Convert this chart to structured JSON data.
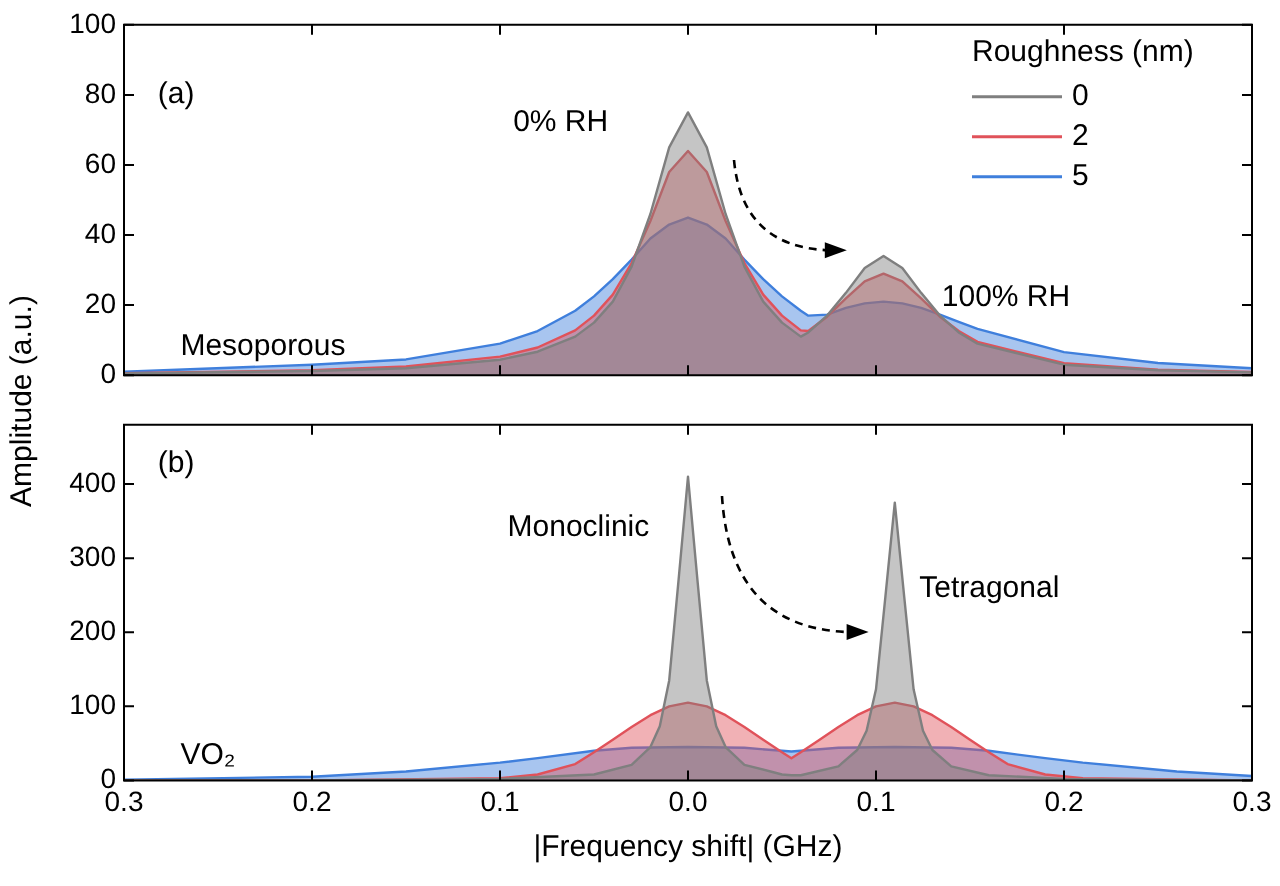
{
  "chart_data": [
    {
      "type": "area",
      "ylabel": "Amplitude (a.u.)",
      "legend": "top right",
      "legend_title": "Roughness (nm)",
      "tick_labels": "y",
      "xlim": [
        -0.3,
        0.3
      ],
      "xticks": [
        {
          "value": -0.3,
          "label": null
        },
        {
          "value": -0.2,
          "label": null
        },
        {
          "value": -0.1,
          "label": null
        },
        {
          "value": 0,
          "label": null
        },
        {
          "value": 0.1,
          "label": null
        },
        {
          "value": 0.2,
          "label": null
        },
        {
          "value": 0.3,
          "label": null
        }
      ],
      "ylim": [
        0,
        100
      ],
      "yticks": [
        0,
        20,
        40,
        60,
        80,
        100
      ],
      "grid": false,
      "annotations": [
        "(a)",
        "0% RH",
        "100% RH",
        "Mesoporous"
      ],
      "x": [
        -0.3,
        -0.2,
        -0.15,
        -0.1,
        -0.08,
        -0.06,
        -0.05,
        -0.04,
        -0.03,
        -0.02,
        -0.01,
        0,
        0.01,
        0.02,
        0.03,
        0.04,
        0.05,
        0.06,
        0.064,
        0.074,
        0.084,
        0.094,
        0.104,
        0.114,
        0.124,
        0.134,
        0.144,
        0.154,
        0.2,
        0.25,
        0.3
      ],
      "series": [
        {
          "name": "0",
          "color": "#7f7f7f",
          "values": [
            0.5,
            1.2,
            2,
            4.4,
            6.7,
            11,
            15,
            21,
            31,
            46,
            65,
            75,
            65,
            46,
            31,
            21,
            15,
            11,
            12.2,
            17,
            23.5,
            30.6,
            34,
            30.6,
            23.5,
            17,
            12.2,
            9,
            3,
            1.4,
            0.8
          ]
        },
        {
          "name": "2",
          "color": "#e0525a",
          "values": [
            0.6,
            1.4,
            2.5,
            5.3,
            7.9,
            12.8,
            17,
            23,
            32,
            44,
            58,
            64,
            58,
            44,
            32,
            23,
            17,
            12.8,
            12.6,
            16.7,
            21.9,
            26.8,
            29,
            26.8,
            21.9,
            16.7,
            12.6,
            9.5,
            3.4,
            1.6,
            0.9
          ]
        },
        {
          "name": "5",
          "color": "#3f7fdc",
          "values": [
            1,
            3,
            4.5,
            9,
            12.6,
            18.4,
            22.5,
            27.4,
            33,
            39,
            43,
            45,
            43,
            39,
            33,
            27.4,
            22.5,
            18.4,
            17,
            17.3,
            19.2,
            20.5,
            21,
            20.5,
            19.2,
            17.3,
            15.2,
            13.2,
            6.6,
            3.5,
            2
          ]
        }
      ]
    },
    {
      "type": "area",
      "xlabel": "|Frequency shift| (GHz)",
      "xlim": [
        -0.3,
        0.3
      ],
      "xticks": [
        {
          "value": -0.3,
          "label": "0.3"
        },
        {
          "value": -0.2,
          "label": "0.2"
        },
        {
          "value": -0.1,
          "label": "0.1"
        },
        {
          "value": 0,
          "label": "0.0"
        },
        0.1,
        0.2,
        0.3
      ],
      "ylim": [
        0,
        480
      ],
      "yticks": [
        0,
        100,
        200,
        300,
        400
      ],
      "grid": false,
      "annotations": [
        "(b)",
        "Monoclinic",
        "Tetragonal",
        "VO₂"
      ],
      "series": [
        {
          "color": "#3f7fdc",
          "x": [
            -0.3,
            -0.2,
            -0.15,
            -0.1,
            -0.08,
            -0.05,
            -0.03,
            0,
            0.03,
            0.05,
            0.055,
            0.06,
            0.08,
            0.11,
            0.14,
            0.16,
            0.19,
            0.21,
            0.26,
            0.3
          ],
          "values": [
            1,
            5,
            12,
            24,
            30,
            40,
            44,
            45,
            44,
            40,
            39,
            40,
            44,
            45,
            44,
            40,
            30,
            24,
            12,
            6
          ]
        },
        {
          "color": "#e0525a",
          "x": [
            -0.3,
            -0.2,
            -0.1,
            -0.08,
            -0.06,
            -0.05,
            -0.04,
            -0.03,
            -0.02,
            -0.01,
            0,
            0.01,
            0.02,
            0.03,
            0.04,
            0.05,
            0.055,
            0.06,
            0.07,
            0.08,
            0.09,
            0.1,
            0.11,
            0.12,
            0.13,
            0.14,
            0.15,
            0.16,
            0.17,
            0.19,
            0.21,
            0.3
          ],
          "values": [
            0,
            0,
            3,
            8,
            22,
            38,
            55,
            72,
            88,
            100,
            105,
            100,
            88,
            72,
            55,
            38,
            30,
            38,
            55,
            72,
            88,
            100,
            105,
            100,
            88,
            72,
            55,
            38,
            22,
            8,
            3,
            0
          ]
        },
        {
          "color": "#7f7f7f",
          "x": [
            -0.3,
            -0.2,
            -0.1,
            -0.05,
            -0.03,
            -0.02,
            -0.015,
            -0.01,
            -0.005,
            0,
            0.005,
            0.01,
            0.015,
            0.02,
            0.03,
            0.05,
            0.055,
            0.06,
            0.08,
            0.09,
            0.095,
            0.1,
            0.105,
            0.11,
            0.115,
            0.12,
            0.125,
            0.13,
            0.14,
            0.16,
            0.2,
            0.3
          ],
          "values": [
            0,
            0,
            2,
            8,
            21,
            45,
            73,
            135,
            271,
            410,
            271,
            135,
            73,
            45,
            21,
            8,
            7,
            7,
            19,
            41,
            67,
            123,
            248,
            375,
            248,
            123,
            67,
            41,
            19,
            7,
            2,
            0
          ]
        }
      ]
    }
  ]
}
